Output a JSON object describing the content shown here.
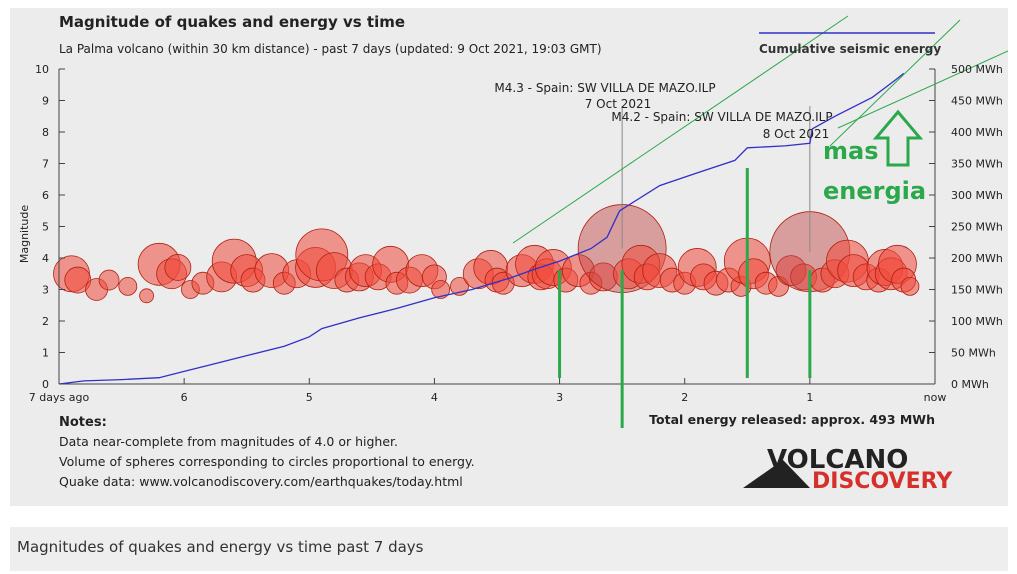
{
  "caption": "Magnitudes of quakes and energy vs time past 7 days",
  "chart_data": {
    "type": "scatter",
    "title": "Magnitude of quakes and energy vs time",
    "subtitle": "La Palma volcano (within 30 km distance) - past 7 days (updated: 9 Oct 2021, 19:03 GMT)",
    "ylabel": "Magnitude",
    "y_right_unit": "MWh",
    "xlim": [
      7,
      0
    ],
    "ylim": [
      0,
      10
    ],
    "y2lim": [
      0,
      500
    ],
    "x_ticks": [
      {
        "x": 7,
        "label": "7 days ago"
      },
      {
        "x": 6,
        "label": "6"
      },
      {
        "x": 5,
        "label": "5"
      },
      {
        "x": 4,
        "label": "4"
      },
      {
        "x": 3,
        "label": "3"
      },
      {
        "x": 2,
        "label": "2"
      },
      {
        "x": 1,
        "label": "1"
      },
      {
        "x": 0,
        "label": "now"
      }
    ],
    "y_ticks": [
      "0",
      "1",
      "2",
      "3",
      "4",
      "5",
      "6",
      "7",
      "8",
      "9",
      "10"
    ],
    "y2_ticks": [
      "0 MWh",
      "50 MWh",
      "100 MWh",
      "150 MWh",
      "200 MWh",
      "250 MWh",
      "300 MWh",
      "350 MWh",
      "400 MWh",
      "450 MWh",
      "500 MWh"
    ],
    "legend": {
      "label": "Cumulative seismic energy",
      "position": "top-right"
    },
    "total_energy": "Total energy released: approx. 493 MWh",
    "notes": {
      "heading": "Notes:",
      "lines": [
        "Data near-complete from magnitudes of 4.0 or higher.",
        "Volume of spheres corresponding to circles proportional to energy.",
        "Quake data: www.volcanodiscovery.com/earthquakes/today.html"
      ]
    },
    "annotations": [
      {
        "x": 2.5,
        "magnitude": 4.3,
        "line1": "M4.3 - Spain: SW VILLA DE MAZO.ILP",
        "line2": "7 Oct 2021"
      },
      {
        "x": 1.0,
        "magnitude": 4.2,
        "line1": "M4.2 - Spain: SW VILLA DE MAZO.ILP",
        "line2": "8 Oct 2021"
      }
    ],
    "cumulative_energy_mwh": [
      [
        7.0,
        0
      ],
      [
        6.8,
        5
      ],
      [
        6.5,
        7
      ],
      [
        6.2,
        10
      ],
      [
        6.0,
        20
      ],
      [
        5.8,
        30
      ],
      [
        5.5,
        45
      ],
      [
        5.2,
        60
      ],
      [
        5.0,
        75
      ],
      [
        4.9,
        88
      ],
      [
        4.6,
        105
      ],
      [
        4.3,
        120
      ],
      [
        4.0,
        137
      ],
      [
        3.7,
        150
      ],
      [
        3.4,
        168
      ],
      [
        3.2,
        182
      ],
      [
        3.0,
        195
      ],
      [
        2.75,
        215
      ],
      [
        2.62,
        233
      ],
      [
        2.52,
        275
      ],
      [
        2.2,
        315
      ],
      [
        1.9,
        335
      ],
      [
        1.6,
        355
      ],
      [
        1.5,
        375
      ],
      [
        1.2,
        378
      ],
      [
        1.0,
        382
      ],
      [
        0.98,
        405
      ],
      [
        0.8,
        425
      ],
      [
        0.5,
        455
      ],
      [
        0.3,
        485
      ],
      [
        0.25,
        493
      ]
    ],
    "quakes": [
      [
        6.9,
        3.5,
        18
      ],
      [
        6.85,
        3.3,
        13
      ],
      [
        6.7,
        3.0,
        11
      ],
      [
        6.6,
        3.3,
        10
      ],
      [
        6.45,
        3.1,
        9
      ],
      [
        6.3,
        2.8,
        7
      ],
      [
        6.2,
        3.8,
        21
      ],
      [
        6.1,
        3.5,
        15
      ],
      [
        6.05,
        3.7,
        13
      ],
      [
        5.95,
        3.0,
        9
      ],
      [
        5.85,
        3.2,
        11
      ],
      [
        5.7,
        3.4,
        15
      ],
      [
        5.6,
        3.9,
        22
      ],
      [
        5.5,
        3.6,
        16
      ],
      [
        5.45,
        3.3,
        12
      ],
      [
        5.3,
        3.6,
        17
      ],
      [
        5.2,
        3.2,
        11
      ],
      [
        5.1,
        3.5,
        14
      ],
      [
        4.95,
        3.7,
        20
      ],
      [
        4.9,
        4.1,
        26
      ],
      [
        4.8,
        3.6,
        18
      ],
      [
        4.7,
        3.3,
        12
      ],
      [
        4.6,
        3.4,
        14
      ],
      [
        4.55,
        3.6,
        16
      ],
      [
        4.45,
        3.4,
        13
      ],
      [
        4.35,
        3.8,
        18
      ],
      [
        4.3,
        3.2,
        11
      ],
      [
        4.2,
        3.3,
        13
      ],
      [
        4.1,
        3.6,
        16
      ],
      [
        4.0,
        3.4,
        12
      ],
      [
        3.95,
        3.0,
        9
      ],
      [
        3.8,
        3.1,
        9
      ],
      [
        3.65,
        3.5,
        15
      ],
      [
        3.55,
        3.7,
        17
      ],
      [
        3.5,
        3.3,
        12
      ],
      [
        3.45,
        3.2,
        11
      ],
      [
        3.3,
        3.6,
        16
      ],
      [
        3.2,
        3.8,
        19
      ],
      [
        3.15,
        3.4,
        13
      ],
      [
        3.1,
        3.5,
        15
      ],
      [
        3.05,
        3.7,
        18
      ],
      [
        2.95,
        3.3,
        12
      ],
      [
        2.85,
        3.6,
        16
      ],
      [
        2.75,
        3.2,
        11
      ],
      [
        2.65,
        3.4,
        14
      ],
      [
        2.5,
        4.3,
        44
      ],
      [
        2.45,
        3.5,
        15
      ],
      [
        2.35,
        3.8,
        19
      ],
      [
        2.3,
        3.4,
        13
      ],
      [
        2.2,
        3.6,
        17
      ],
      [
        2.1,
        3.3,
        12
      ],
      [
        2.0,
        3.2,
        11
      ],
      [
        1.9,
        3.7,
        19
      ],
      [
        1.85,
        3.4,
        13
      ],
      [
        1.75,
        3.2,
        12
      ],
      [
        1.65,
        3.3,
        12
      ],
      [
        1.55,
        3.1,
        10
      ],
      [
        1.5,
        3.9,
        23
      ],
      [
        1.45,
        3.5,
        15
      ],
      [
        1.35,
        3.2,
        11
      ],
      [
        1.25,
        3.1,
        10
      ],
      [
        1.15,
        3.6,
        15
      ],
      [
        1.05,
        3.4,
        13
      ],
      [
        1.0,
        4.2,
        40
      ],
      [
        0.9,
        3.3,
        12
      ],
      [
        0.8,
        3.5,
        14
      ],
      [
        0.7,
        3.9,
        21
      ],
      [
        0.65,
        3.6,
        16
      ],
      [
        0.55,
        3.4,
        13
      ],
      [
        0.45,
        3.3,
        12
      ],
      [
        0.4,
        3.7,
        18
      ],
      [
        0.35,
        3.5,
        16
      ],
      [
        0.3,
        3.8,
        19
      ],
      [
        0.25,
        3.3,
        12
      ],
      [
        0.2,
        3.1,
        9
      ]
    ]
  },
  "overlay": {
    "label_line1": "mas",
    "label_line2": "energia",
    "color": "#2aa84a",
    "vertical_marks_x": [
      3.0,
      2.5,
      1.5,
      1.0
    ]
  },
  "logo": {
    "line1": "VOLCANO",
    "line2": "DISCOVERY"
  },
  "colors": {
    "background": "#ececec",
    "quake_fill": "#f04b3c",
    "quake_stroke": "#b02010",
    "energy_line": "#3030c8",
    "annotation_bubble": "#c04040",
    "axis": "#444444",
    "logo_dark": "#222222",
    "logo_red": "#d6302a"
  }
}
